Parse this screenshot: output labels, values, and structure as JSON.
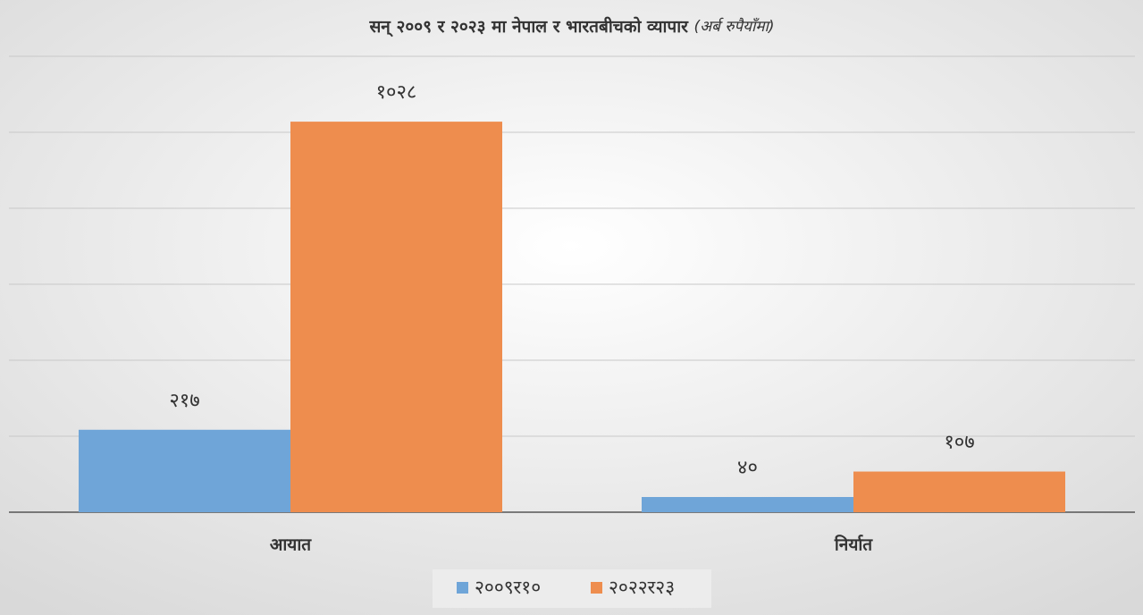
{
  "chart_data": {
    "type": "bar",
    "title": "सन् २००९ र २०२३ मा नेपाल र भारतबीचको व्यापार",
    "subtitle": "(अर्ब रुपैयाँमा)",
    "categories": [
      "आयात",
      "निर्यात"
    ],
    "series": [
      {
        "name": "२००९र१०",
        "color": "#6fa5d8",
        "values": [
          217,
          40
        ],
        "value_labels": [
          "२१७",
          "४०"
        ]
      },
      {
        "name": "२०२२र२३",
        "color": "#ee8d4e",
        "values": [
          1028,
          107
        ],
        "value_labels": [
          "१०२८",
          "१०७"
        ]
      }
    ],
    "ylim": [
      0,
      1200
    ],
    "yticks": [
      0,
      200,
      400,
      600,
      800,
      1000,
      1200
    ],
    "grid": true,
    "legend": "bottom"
  }
}
